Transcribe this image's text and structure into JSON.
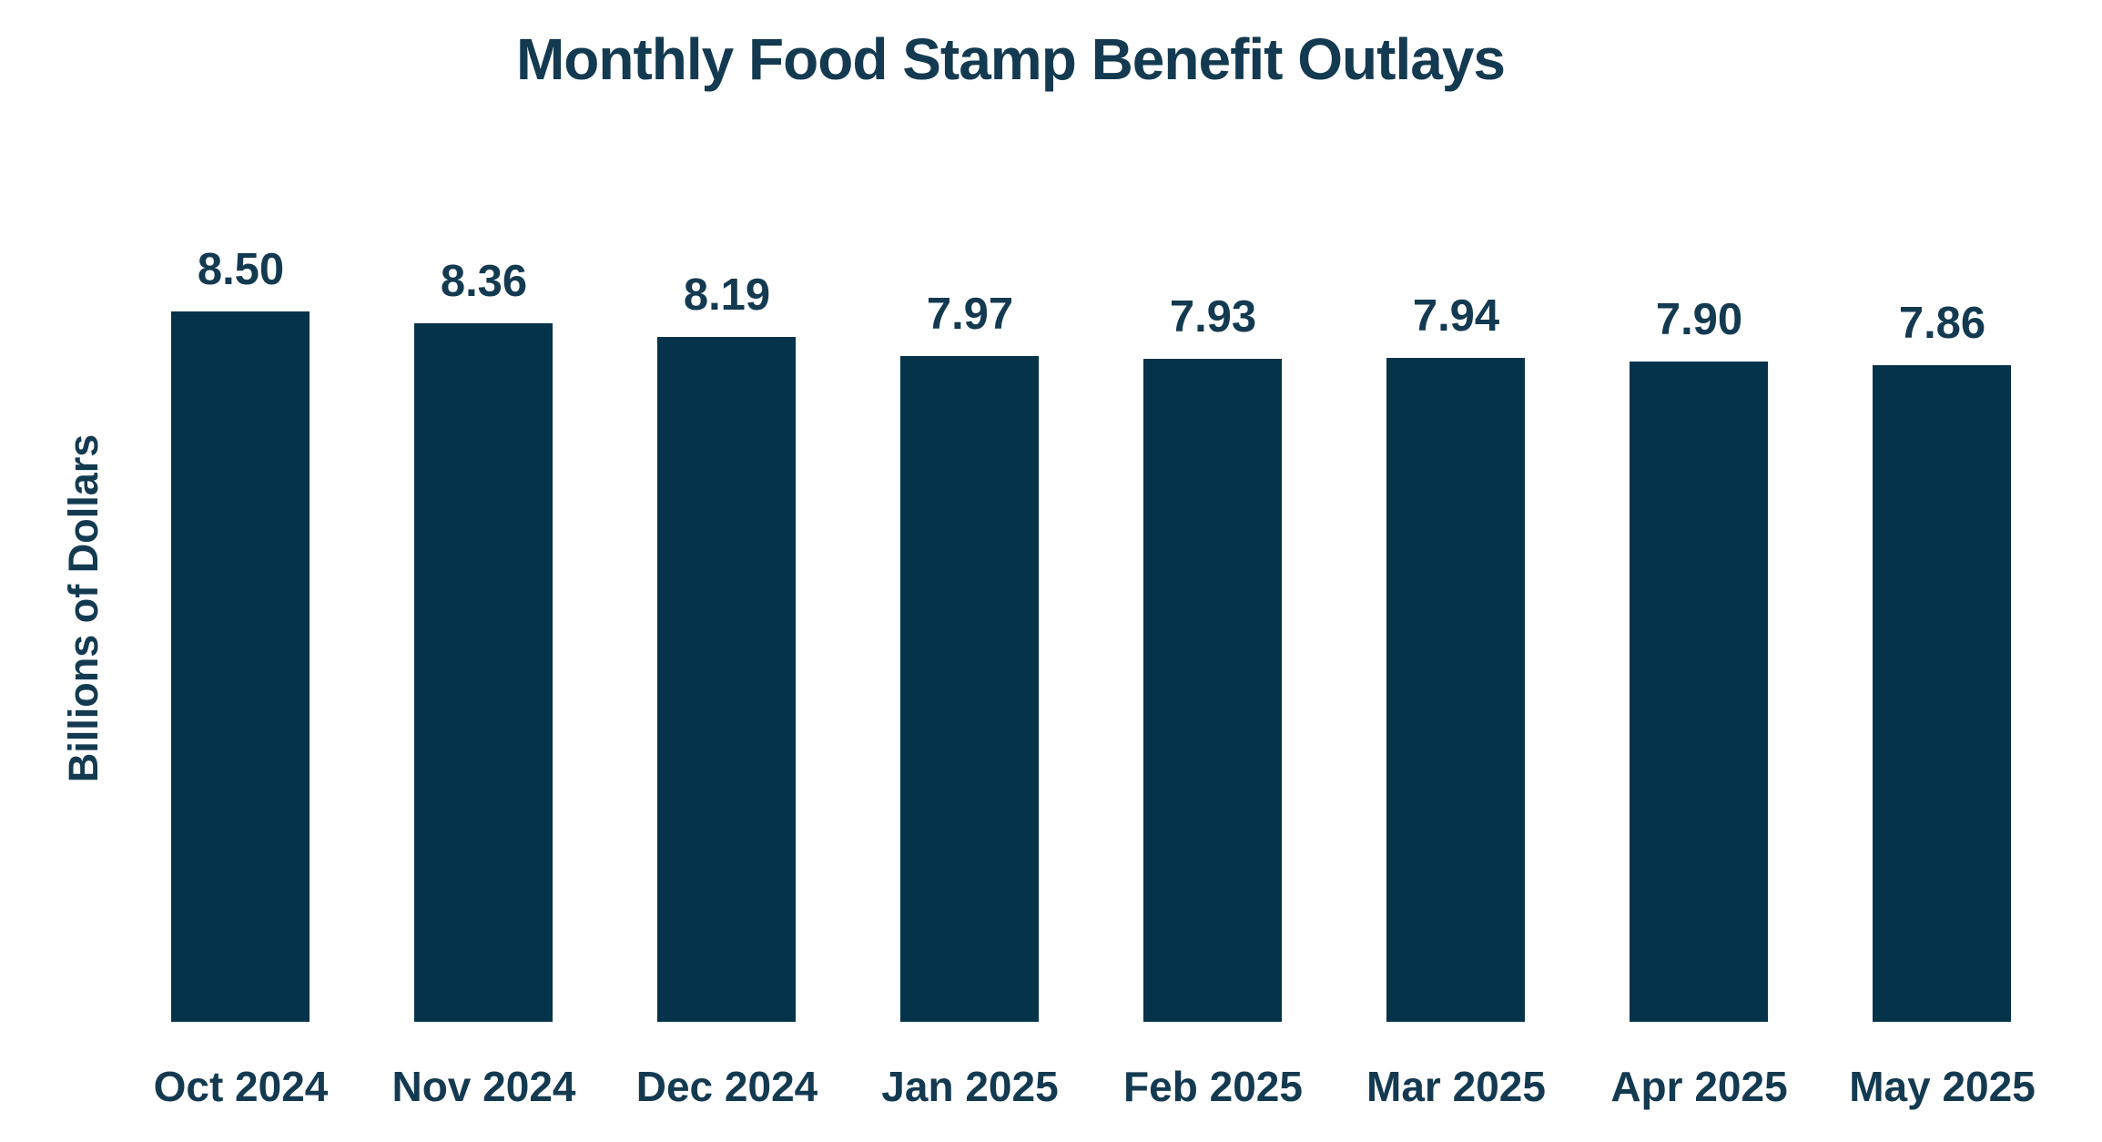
{
  "chart_data": {
    "type": "bar",
    "title": "Monthly Food Stamp Benefit Outlays",
    "xlabel": "",
    "ylabel": "Billions of Dollars",
    "categories": [
      "Oct 2024",
      "Nov 2024",
      "Dec 2024",
      "Jan 2025",
      "Feb 2025",
      "Mar 2025",
      "Apr 2025",
      "May 2025"
    ],
    "values": [
      8.5,
      8.36,
      8.19,
      7.97,
      7.93,
      7.94,
      7.9,
      7.86
    ],
    "value_labels": [
      "8.50",
      "8.36",
      "8.19",
      "7.97",
      "7.93",
      "7.94",
      "7.90",
      "7.86"
    ],
    "ylim": [
      0,
      8.5
    ],
    "grid": false,
    "legend": null,
    "axis_lines": false,
    "bar_color": "#04334a",
    "text_color": "#133a50",
    "background_color": "#ffffff"
  }
}
